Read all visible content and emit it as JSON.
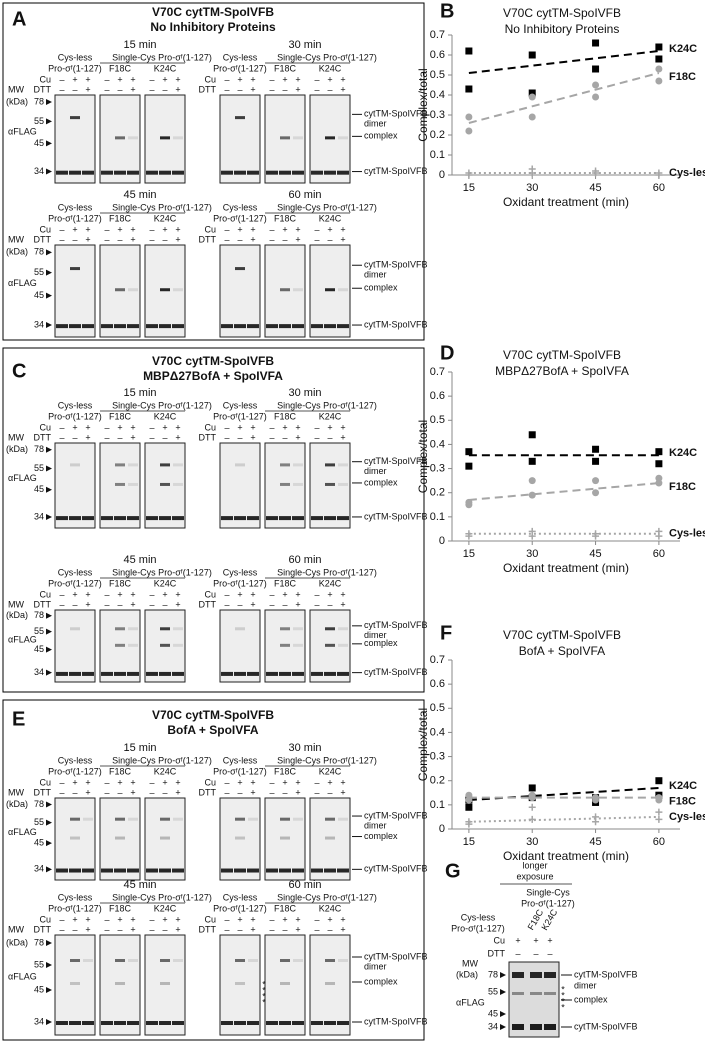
{
  "chart_data": [
    {
      "type": "scatter",
      "letter": "B",
      "title": "V70C cytTM-SpoIVFB",
      "subtitle": "No Inhibitory Proteins",
      "x_label": "Oxidant treatment (min)",
      "y_label": "Complex/total",
      "x": [
        15,
        15,
        30,
        30,
        45,
        45,
        60,
        60
      ],
      "xlim": [
        11,
        65
      ],
      "xticks": [
        15,
        30,
        45,
        60
      ],
      "ylim": [
        0,
        0.7
      ],
      "yticks": [
        0,
        0.1,
        0.2,
        0.3,
        0.4,
        0.5,
        0.6,
        0.7
      ],
      "trend_x": [
        15,
        60
      ],
      "series": [
        {
          "name": "K24C",
          "color": "#000000",
          "marker": "square",
          "line": "dashed",
          "values": [
            0.62,
            0.43,
            0.6,
            0.41,
            0.66,
            0.53,
            0.64,
            0.58
          ],
          "trend": [
            0.51,
            0.62
          ]
        },
        {
          "name": "F18C",
          "color": "#a6a6a6",
          "marker": "circle",
          "line": "dashed",
          "values": [
            0.29,
            0.22,
            0.39,
            0.29,
            0.45,
            0.39,
            0.53,
            0.47
          ],
          "trend": [
            0.26,
            0.51
          ]
        },
        {
          "name": "Cys-less",
          "color": "#a6a6a6",
          "marker": "plus",
          "line": "dotted",
          "values": [
            0.01,
            0.0,
            0.03,
            0.01,
            0.02,
            0.01,
            0.01,
            0.0
          ],
          "trend": [
            0.01,
            0.01
          ]
        }
      ]
    },
    {
      "type": "scatter",
      "letter": "D",
      "title": "V70C cytTM-SpoIVFB",
      "subtitle": "MBPΔ27BofA + SpoIVFA",
      "x_label": "Oxidant treatment (min)",
      "y_label": "Complex/total",
      "x": [
        15,
        15,
        30,
        30,
        45,
        45,
        60,
        60
      ],
      "xlim": [
        11,
        65
      ],
      "xticks": [
        15,
        30,
        45,
        60
      ],
      "ylim": [
        0,
        0.7
      ],
      "yticks": [
        0,
        0.1,
        0.2,
        0.3,
        0.4,
        0.5,
        0.6,
        0.7
      ],
      "trend_x": [
        15,
        60
      ],
      "series": [
        {
          "name": "K24C",
          "color": "#000000",
          "marker": "square",
          "line": "dashed",
          "values": [
            0.37,
            0.31,
            0.44,
            0.33,
            0.38,
            0.33,
            0.37,
            0.32
          ],
          "trend": [
            0.355,
            0.355
          ]
        },
        {
          "name": "F18C",
          "color": "#a6a6a6",
          "marker": "circle",
          "line": "dashed",
          "values": [
            0.16,
            0.15,
            0.25,
            0.19,
            0.25,
            0.2,
            0.26,
            0.24
          ],
          "trend": [
            0.17,
            0.24
          ]
        },
        {
          "name": "Cys-less",
          "color": "#a6a6a6",
          "marker": "plus",
          "line": "dotted",
          "values": [
            0.03,
            0.02,
            0.04,
            0.02,
            0.03,
            0.02,
            0.04,
            0.02
          ],
          "trend": [
            0.03,
            0.03
          ]
        }
      ]
    },
    {
      "type": "scatter",
      "letter": "F",
      "title": "V70C cytTM-SpoIVFB",
      "subtitle": "BofA + SpoIVFA",
      "x_label": "Oxidant treatment (min)",
      "y_label": "Complex/total",
      "x": [
        15,
        15,
        30,
        30,
        45,
        45,
        60,
        60
      ],
      "xlim": [
        11,
        65
      ],
      "xticks": [
        15,
        30,
        45,
        60
      ],
      "ylim": [
        0,
        0.7
      ],
      "yticks": [
        0,
        0.1,
        0.2,
        0.3,
        0.4,
        0.5,
        0.6,
        0.7
      ],
      "trend_x": [
        15,
        60
      ],
      "series": [
        {
          "name": "K24C",
          "color": "#000000",
          "marker": "square",
          "line": "dashed",
          "values": [
            0.12,
            0.09,
            0.17,
            0.13,
            0.13,
            0.11,
            0.2,
            0.14
          ],
          "trend": [
            0.12,
            0.17
          ]
        },
        {
          "name": "F18C",
          "color": "#a6a6a6",
          "marker": "circle",
          "line": "dashed",
          "values": [
            0.14,
            0.12,
            0.14,
            0.13,
            0.13,
            0.12,
            0.13,
            0.12
          ],
          "trend": [
            0.13,
            0.13
          ]
        },
        {
          "name": "Cys-less",
          "color": "#a6a6a6",
          "marker": "plus",
          "line": "dotted",
          "values": [
            0.03,
            0.02,
            0.09,
            0.04,
            0.05,
            0.03,
            0.07,
            0.04
          ],
          "trend": [
            0.03,
            0.05
          ]
        }
      ]
    }
  ],
  "gel_panels": [
    {
      "letter": "A",
      "title": "V70C cytTM-SpoIVFB",
      "subtitle": "No Inhibitory Proteins",
      "times": [
        "15 min",
        "30 min",
        "45 min",
        "60 min"
      ]
    },
    {
      "letter": "C",
      "title": "V70C cytTM-SpoIVFB",
      "subtitle": "MBPΔ27BofA + SpoIVFA",
      "times": [
        "15 min",
        "30 min",
        "45 min",
        "60 min"
      ]
    },
    {
      "letter": "E",
      "title": "V70C cytTM-SpoIVFB",
      "subtitle": "BofA + SpoIVFA",
      "times": [
        "15 min",
        "30 min",
        "45 min",
        "60 min"
      ]
    }
  ],
  "gel_labels": {
    "cys_less": "Cys-less",
    "pro": "Pro-σᶠ(1-127)",
    "single": "Single-Cys Pro-σᶠ(1-127)",
    "f18c": "F18C",
    "k24c": "K24C",
    "cu": "Cu",
    "dtt": "DTT",
    "plus": "+",
    "minus": "–",
    "mw": "MW",
    "kda": "(kDa)",
    "m78": "78",
    "m55": "55",
    "m45": "45",
    "m34": "34",
    "aflag": "αFLAG",
    "dimer_a": "cytTM-SpoIVFB",
    "dimer_b": "dimer",
    "complex": "complex",
    "monomer": "cytTM-SpoIVFB",
    "asterisk": "*"
  },
  "panel_g": {
    "letter": "G",
    "exposure": [
      "longer",
      "exposure"
    ],
    "single": [
      "Single-Cys",
      "Pro-σᶠ(1-127)"
    ]
  }
}
